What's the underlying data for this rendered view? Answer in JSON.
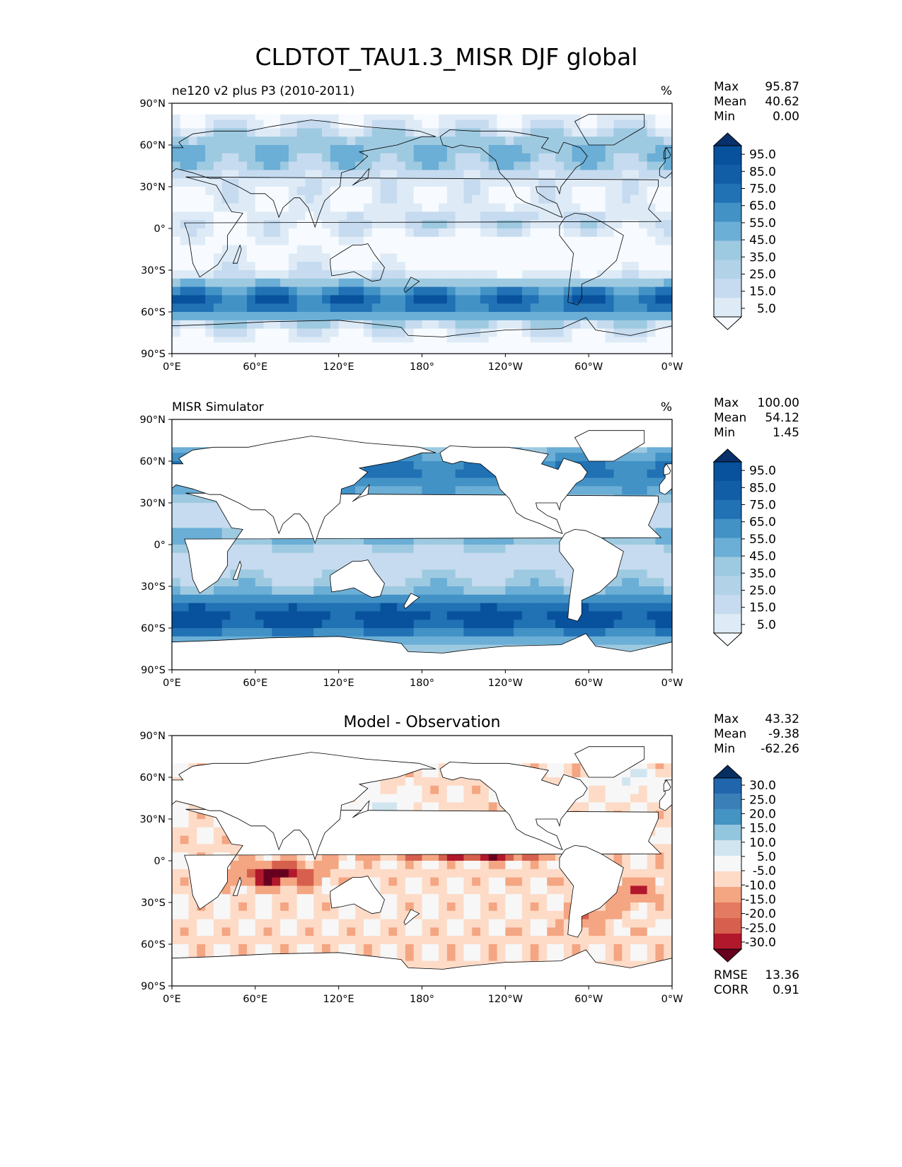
{
  "figure": {
    "title": "CLDTOT_TAU1.3_MISR DJF global"
  },
  "colors": {
    "seq": [
      "#f7fbff",
      "#deebf7",
      "#c6dbef",
      "#9ecae1",
      "#6baed6",
      "#4292c6",
      "#2171b5",
      "#08519c",
      "#08306b"
    ],
    "diff_neg": [
      "#fddbc7",
      "#f4a582",
      "#d6604d",
      "#b2182b",
      "#67001f"
    ],
    "diff_pos": [
      "#f7f7f7",
      "#d1e5f0",
      "#92c5de",
      "#4393c3",
      "#2166ac",
      "#053061"
    ],
    "land": "#ffffff",
    "coast": "#000000"
  },
  "chart_data": [
    {
      "type": "heatmap",
      "panel": "test",
      "title_left": "ne120 v2 plus P3 (2010-2011)",
      "title_center": "",
      "units": "%",
      "xlabel": "",
      "ylabel": "",
      "xlim": [
        0,
        360
      ],
      "ylim": [
        -90,
        90
      ],
      "xticks": [
        "0°E",
        "60°E",
        "120°E",
        "180°",
        "120°W",
        "60°W",
        "0°W"
      ],
      "yticks": [
        "90°S",
        "60°S",
        "30°S",
        "0°",
        "30°N",
        "60°N",
        "90°N"
      ],
      "stats": {
        "labels": [
          "Max",
          "Mean",
          "Min"
        ],
        "values": [
          "95.87",
          "40.62",
          "0.00"
        ]
      },
      "colorbar": {
        "levels": [
          "95.0",
          "85.0",
          "75.0",
          "65.0",
          "55.0",
          "45.0",
          "35.0",
          "25.0",
          "15.0",
          "5.0"
        ]
      },
      "land_masked": false
    },
    {
      "type": "heatmap",
      "panel": "reference",
      "title_left": "MISR Simulator",
      "title_center": "",
      "units": "%",
      "xlim": [
        0,
        360
      ],
      "ylim": [
        -90,
        90
      ],
      "xticks": [
        "0°E",
        "60°E",
        "120°E",
        "180°",
        "120°W",
        "60°W",
        "0°W"
      ],
      "yticks": [
        "90°S",
        "60°S",
        "30°S",
        "0°",
        "30°N",
        "60°N",
        "90°N"
      ],
      "stats": {
        "labels": [
          "Max",
          "Mean",
          "Min"
        ],
        "values": [
          "100.00",
          "54.12",
          "1.45"
        ]
      },
      "colorbar": {
        "levels": [
          "95.0",
          "85.0",
          "75.0",
          "65.0",
          "55.0",
          "45.0",
          "35.0",
          "25.0",
          "15.0",
          "5.0"
        ]
      },
      "land_masked": true
    },
    {
      "type": "heatmap",
      "panel": "difference",
      "title_left": "",
      "title_center": "Model - Observation",
      "units": "",
      "xlim": [
        0,
        360
      ],
      "ylim": [
        -90,
        90
      ],
      "xticks": [
        "0°E",
        "60°E",
        "120°E",
        "180°",
        "120°W",
        "60°W",
        "0°W"
      ],
      "yticks": [
        "90°S",
        "60°S",
        "30°S",
        "0°",
        "30°N",
        "60°N",
        "90°N"
      ],
      "stats": {
        "labels": [
          "Max",
          "Mean",
          "Min"
        ],
        "values": [
          "43.32",
          "-9.38",
          "-62.26"
        ]
      },
      "colorbar": {
        "levels": [
          "30.0",
          "25.0",
          "20.0",
          "15.0",
          "10.0",
          "5.0",
          "-5.0",
          "-10.0",
          "-15.0",
          "-20.0",
          "-25.0",
          "-30.0"
        ]
      },
      "metrics": {
        "labels": [
          "RMSE",
          "CORR"
        ],
        "values": [
          "13.36",
          "0.91"
        ]
      },
      "land_masked": true
    }
  ]
}
